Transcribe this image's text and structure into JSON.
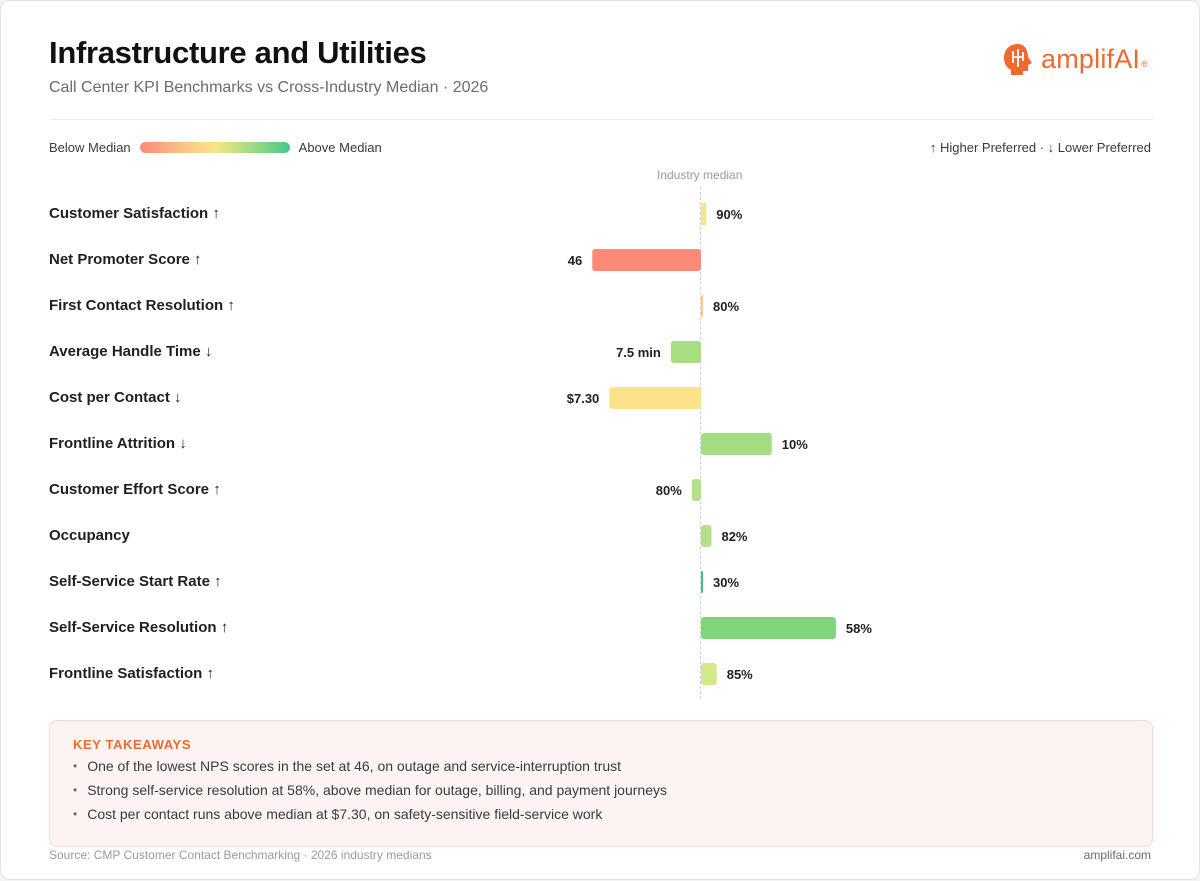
{
  "header": {
    "title": "Infrastructure and Utilities",
    "subtitle": "Call Center KPI Benchmarks vs Cross-Industry Median · 2026",
    "logo_text": "amplifAI",
    "logo_reg": "®"
  },
  "legend": {
    "below": "Below Median",
    "above": "Above Median",
    "preference": "↑ Higher Preferred · ↓ Lower Preferred"
  },
  "chart_data": {
    "type": "bar",
    "orientation": "horizontal-diverging",
    "median_label": "Industry median",
    "categories": [
      "Customer Satisfaction ↑",
      "Net Promoter Score ↑",
      "First Contact Resolution ↑",
      "Average Handle Time ↓",
      "Cost per Contact ↓",
      "Frontline Attrition ↓",
      "Customer Effort Score ↑",
      "Occupancy",
      "Self-Service Start Rate ↑",
      "Self-Service Resolution ↑",
      "Frontline Satisfaction ↑"
    ],
    "value_labels": [
      "90%",
      "46",
      "80%",
      "7.5 min",
      "$7.30",
      "10%",
      "80%",
      "82%",
      "30%",
      "58%",
      "85%"
    ],
    "relative_deviation": [
      0.04,
      -0.83,
      0.01,
      -0.23,
      -0.7,
      0.54,
      -0.07,
      0.08,
      0.01,
      1.03,
      0.12
    ],
    "bar_colors": [
      "#f9e48a",
      "#fb8a78",
      "#fcc788",
      "#a9dd82",
      "#fde28a",
      "#a3de82",
      "#b3e088",
      "#b3e088",
      "#3dbf9a",
      "#80d67c",
      "#d2e88b"
    ],
    "legend_gradient": [
      "#fb8a78",
      "#fcc788",
      "#f9e48a",
      "#a9dd82",
      "#46c78c"
    ]
  },
  "takeaways": {
    "heading": "KEY TAKEAWAYS",
    "items": [
      "One of the lowest NPS scores in the set at 46, on outage and service-interruption trust",
      "Strong self-service resolution at 58%, above median for outage, billing, and payment journeys",
      "Cost per contact runs above median at $7.30, on safety-sensitive field-service work"
    ]
  },
  "footer": {
    "source": "Source: CMP Customer Contact Benchmarking · 2026 industry medians",
    "site": "amplifai.com"
  }
}
